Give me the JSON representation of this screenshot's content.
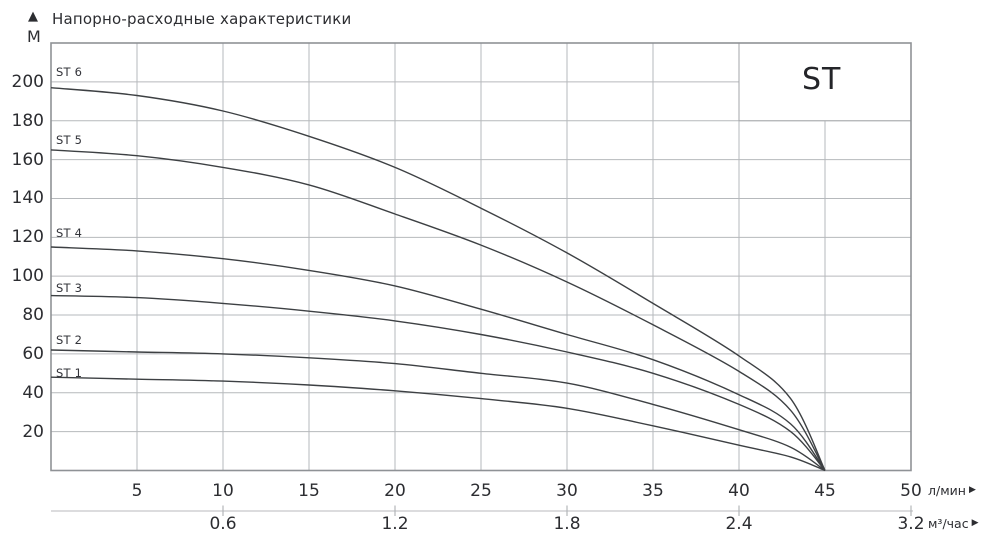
{
  "header": {
    "arrow": "▲",
    "title": "Напорно-расходные характеристики",
    "y_unit": "М"
  },
  "st_box": {
    "label": "ST"
  },
  "axes": {
    "x1": {
      "unit": "л/мин",
      "arrow": "▶"
    },
    "x2": {
      "unit": "м³/час",
      "arrow": "▶"
    }
  },
  "chart_data": {
    "type": "line",
    "title": "Напорно-расходные характеристики",
    "grid": true,
    "legend_position": "curve-start-labels",
    "y_axis": {
      "label": "М",
      "ticks": [
        20,
        40,
        60,
        80,
        100,
        120,
        140,
        160,
        180,
        200
      ],
      "range": [
        0,
        220
      ]
    },
    "x_axis_primary": {
      "label": "л/мин",
      "ticks": [
        5,
        10,
        15,
        20,
        25,
        30,
        35,
        40,
        45,
        50
      ],
      "range": [
        0,
        50
      ]
    },
    "x_axis_secondary": {
      "label": "м³/час",
      "ticks": [
        {
          "label": "0.6",
          "at_lmin": 10
        },
        {
          "label": "1.2",
          "at_lmin": 20
        },
        {
          "label": "1.8",
          "at_lmin": 30
        },
        {
          "label": "2.4",
          "at_lmin": 40
        },
        {
          "label": "3.2",
          "at_lmin": 50
        }
      ]
    },
    "annotation": "ST",
    "convergence_point_lmin": 45,
    "series": [
      {
        "name": "ST 6",
        "points": [
          [
            0,
            197
          ],
          [
            5,
            193
          ],
          [
            10,
            185
          ],
          [
            15,
            172
          ],
          [
            20,
            156
          ],
          [
            25,
            135
          ],
          [
            30,
            112
          ],
          [
            35,
            86
          ],
          [
            40,
            59
          ],
          [
            43,
            37
          ],
          [
            45,
            0
          ]
        ]
      },
      {
        "name": "ST 5",
        "points": [
          [
            0,
            165
          ],
          [
            5,
            162
          ],
          [
            10,
            156
          ],
          [
            15,
            147
          ],
          [
            20,
            132
          ],
          [
            25,
            116
          ],
          [
            30,
            97
          ],
          [
            35,
            75
          ],
          [
            40,
            51
          ],
          [
            43,
            31
          ],
          [
            45,
            0
          ]
        ]
      },
      {
        "name": "ST 4",
        "points": [
          [
            0,
            115
          ],
          [
            5,
            113
          ],
          [
            10,
            109
          ],
          [
            15,
            103
          ],
          [
            20,
            95
          ],
          [
            25,
            83
          ],
          [
            30,
            70
          ],
          [
            35,
            57
          ],
          [
            40,
            39
          ],
          [
            43,
            24
          ],
          [
            45,
            0
          ]
        ]
      },
      {
        "name": "ST 3",
        "points": [
          [
            0,
            90
          ],
          [
            5,
            89
          ],
          [
            10,
            86
          ],
          [
            15,
            82
          ],
          [
            20,
            77
          ],
          [
            25,
            70
          ],
          [
            30,
            61
          ],
          [
            35,
            50
          ],
          [
            40,
            34
          ],
          [
            43,
            20
          ],
          [
            45,
            0
          ]
        ]
      },
      {
        "name": "ST 2",
        "points": [
          [
            0,
            62
          ],
          [
            5,
            61
          ],
          [
            10,
            60
          ],
          [
            15,
            58
          ],
          [
            20,
            55
          ],
          [
            25,
            50
          ],
          [
            30,
            45
          ],
          [
            35,
            34
          ],
          [
            40,
            21
          ],
          [
            43,
            12
          ],
          [
            45,
            0
          ]
        ]
      },
      {
        "name": "ST 1",
        "points": [
          [
            0,
            48
          ],
          [
            5,
            47
          ],
          [
            10,
            46
          ],
          [
            15,
            44
          ],
          [
            20,
            41
          ],
          [
            25,
            37
          ],
          [
            30,
            32
          ],
          [
            35,
            23
          ],
          [
            40,
            13
          ],
          [
            43,
            7
          ],
          [
            45,
            0
          ]
        ]
      }
    ],
    "colors": {
      "curve": "#3d4043",
      "grid": "#b6b9bc",
      "border": "#8f9296",
      "secondary_axis": "#c6c8ca",
      "text": "#2c2d31"
    }
  }
}
